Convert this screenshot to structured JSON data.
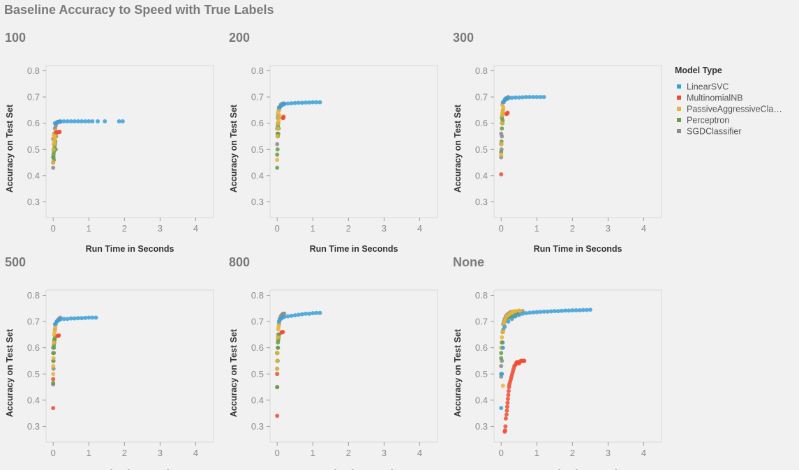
{
  "page": {
    "title": "Baseline Accuracy to Speed with True Labels"
  },
  "chart_data": {
    "type": "scatter",
    "title": "Baseline Accuracy to Speed with True Labels",
    "xlabel": "Run Time in Seconds",
    "ylabel": "Accuracy on Test Set",
    "xlim": [
      -0.2,
      4.5
    ],
    "ylim": [
      0.24,
      0.82
    ],
    "xticks": [
      "0",
      "1",
      "2",
      "3",
      "4"
    ],
    "yticks": [
      "0.3",
      "0.4",
      "0.5",
      "0.6",
      "0.7",
      "0.8"
    ],
    "grid": false,
    "legend": {
      "title": "Model Type",
      "position": "right",
      "entries": [
        {
          "name": "LinearSVC",
          "label": "LinearSVC",
          "color": "#3b9fd9"
        },
        {
          "name": "MultinomialNB",
          "label": "MultinomialNB",
          "color": "#ee4d33"
        },
        {
          "name": "PassiveAggressiveClassifier",
          "label": "PassiveAggressiveCla…",
          "color": "#e8b33c"
        },
        {
          "name": "Perceptron",
          "label": "Perceptron",
          "color": "#6a9b48"
        },
        {
          "name": "SGDClassifier",
          "label": "SGDClassifier",
          "color": "#8c8c8c"
        }
      ]
    },
    "panels": [
      {
        "title": "100",
        "series": [
          {
            "name": "SGDClassifier",
            "x": [
              0.0,
              0.01,
              0.02,
              0.03,
              0.05,
              0.07,
              0.1,
              0.13,
              0.16,
              0.2,
              0.0,
              0.01,
              0.0
            ],
            "y": [
              0.43,
              0.47,
              0.52,
              0.56,
              0.58,
              0.59,
              0.6,
              0.605,
              0.605,
              0.605,
              0.45,
              0.5,
              0.54
            ]
          },
          {
            "name": "Perceptron",
            "x": [
              0.0,
              0.01,
              0.02,
              0.03,
              0.04,
              0.05,
              0.06,
              0.07,
              0.08,
              0.02,
              0.04,
              0.06
            ],
            "y": [
              0.47,
              0.48,
              0.49,
              0.5,
              0.51,
              0.52,
              0.53,
              0.5,
              0.55,
              0.46,
              0.54,
              0.56
            ]
          },
          {
            "name": "PassiveAggressiveClassifier",
            "x": [
              0.0,
              0.01,
              0.02,
              0.03,
              0.04,
              0.05,
              0.06,
              0.07,
              0.02,
              0.04
            ],
            "y": [
              0.45,
              0.5,
              0.52,
              0.53,
              0.54,
              0.55,
              0.56,
              0.57,
              0.555,
              0.545
            ]
          },
          {
            "name": "MultinomialNB",
            "x": [
              0.08,
              0.1,
              0.12,
              0.14,
              0.16,
              0.18
            ],
            "y": [
              0.565,
              0.565,
              0.566,
              0.566,
              0.567,
              0.567
            ]
          },
          {
            "name": "LinearSVC",
            "x": [
              0.05,
              0.1,
              0.15,
              0.2,
              0.3,
              0.4,
              0.5,
              0.6,
              0.7,
              0.8,
              0.9,
              1.0,
              1.1,
              1.25,
              1.45,
              1.85,
              1.95
            ],
            "y": [
              0.6,
              0.603,
              0.605,
              0.607,
              0.607,
              0.607,
              0.607,
              0.607,
              0.607,
              0.607,
              0.607,
              0.607,
              0.607,
              0.607,
              0.607,
              0.607,
              0.607
            ]
          }
        ]
      },
      {
        "title": "200",
        "series": [
          {
            "name": "SGDClassifier",
            "x": [
              0.0,
              0.01,
              0.02,
              0.03,
              0.05,
              0.07,
              0.1,
              0.13,
              0.16,
              0.2,
              0.0,
              0.02
            ],
            "y": [
              0.52,
              0.56,
              0.6,
              0.63,
              0.65,
              0.66,
              0.67,
              0.673,
              0.675,
              0.675,
              0.58,
              0.62
            ]
          },
          {
            "name": "Perceptron",
            "x": [
              0.0,
              0.01,
              0.02,
              0.03,
              0.04,
              0.02,
              0.03,
              0.0
            ],
            "y": [
              0.43,
              0.5,
              0.55,
              0.56,
              0.58,
              0.59,
              0.6,
              0.48
            ]
          },
          {
            "name": "PassiveAggressiveClassifier",
            "x": [
              0.0,
              0.01,
              0.02,
              0.03,
              0.04,
              0.05,
              0.06,
              0.02,
              0.04
            ],
            "y": [
              0.46,
              0.55,
              0.58,
              0.6,
              0.61,
              0.62,
              0.63,
              0.64,
              0.65
            ]
          },
          {
            "name": "MultinomialNB",
            "x": [
              0.16,
              0.17,
              0.18
            ],
            "y": [
              0.62,
              0.62,
              0.625
            ]
          },
          {
            "name": "LinearSVC",
            "x": [
              0.05,
              0.1,
              0.15,
              0.2,
              0.3,
              0.4,
              0.5,
              0.6,
              0.7,
              0.8,
              0.9,
              1.0,
              1.1,
              1.2
            ],
            "y": [
              0.66,
              0.665,
              0.67,
              0.673,
              0.675,
              0.676,
              0.677,
              0.678,
              0.678,
              0.679,
              0.679,
              0.68,
              0.68,
              0.68
            ]
          }
        ]
      },
      {
        "title": "300",
        "series": [
          {
            "name": "SGDClassifier",
            "x": [
              0.0,
              0.01,
              0.02,
              0.03,
              0.05,
              0.07,
              0.1,
              0.13,
              0.16,
              0.2,
              0.0,
              0.0
            ],
            "y": [
              0.47,
              0.5,
              0.55,
              0.6,
              0.65,
              0.68,
              0.69,
              0.695,
              0.695,
              0.7,
              0.52,
              0.56
            ]
          },
          {
            "name": "Perceptron",
            "x": [
              0.0,
              0.01,
              0.02,
              0.03,
              0.04,
              0.02,
              0.03,
              0.04
            ],
            "y": [
              0.49,
              0.53,
              0.58,
              0.6,
              0.61,
              0.62,
              0.63,
              0.64
            ]
          },
          {
            "name": "PassiveAggressiveClassifier",
            "x": [
              0.0,
              0.01,
              0.02,
              0.03,
              0.04,
              0.05,
              0.06,
              0.03
            ],
            "y": [
              0.48,
              0.52,
              0.6,
              0.63,
              0.64,
              0.65,
              0.66,
              0.67
            ]
          },
          {
            "name": "MultinomialNB",
            "x": [
              0.0,
              0.15,
              0.16,
              0.17,
              0.18
            ],
            "y": [
              0.405,
              0.635,
              0.637,
              0.637,
              0.64
            ]
          },
          {
            "name": "LinearSVC",
            "x": [
              0.05,
              0.1,
              0.15,
              0.2,
              0.3,
              0.4,
              0.5,
              0.6,
              0.7,
              0.8,
              0.9,
              1.0,
              1.1,
              1.2
            ],
            "y": [
              0.68,
              0.688,
              0.692,
              0.695,
              0.697,
              0.698,
              0.698,
              0.699,
              0.7,
              0.7,
              0.7,
              0.7,
              0.7,
              0.7
            ]
          }
        ]
      },
      {
        "title": "500",
        "series": [
          {
            "name": "SGDClassifier",
            "x": [
              0.0,
              0.01,
              0.02,
              0.03,
              0.05,
              0.07,
              0.1,
              0.13,
              0.16,
              0.2,
              0.0,
              0.0
            ],
            "y": [
              0.46,
              0.52,
              0.58,
              0.63,
              0.67,
              0.69,
              0.7,
              0.705,
              0.71,
              0.715,
              0.55,
              0.6
            ]
          },
          {
            "name": "Perceptron",
            "x": [
              0.0,
              0.01,
              0.02,
              0.03,
              0.04,
              0.05,
              0.0,
              0.02
            ],
            "y": [
              0.465,
              0.55,
              0.6,
              0.62,
              0.63,
              0.64,
              0.58,
              0.61
            ]
          },
          {
            "name": "PassiveAggressiveClassifier",
            "x": [
              0.0,
              0.01,
              0.02,
              0.03,
              0.04,
              0.05,
              0.06,
              0.0
            ],
            "y": [
              0.5,
              0.56,
              0.62,
              0.65,
              0.66,
              0.67,
              0.68,
              0.53
            ]
          },
          {
            "name": "MultinomialNB",
            "x": [
              0.0,
              0.0,
              0.12,
              0.14,
              0.16
            ],
            "y": [
              0.37,
              0.48,
              0.645,
              0.645,
              0.647
            ]
          },
          {
            "name": "LinearSVC",
            "x": [
              0.05,
              0.1,
              0.15,
              0.2,
              0.3,
              0.4,
              0.5,
              0.6,
              0.7,
              0.8,
              0.9,
              1.0,
              1.1,
              1.2
            ],
            "y": [
              0.69,
              0.7,
              0.705,
              0.708,
              0.71,
              0.71,
              0.712,
              0.712,
              0.713,
              0.713,
              0.714,
              0.715,
              0.715,
              0.715
            ]
          }
        ]
      },
      {
        "title": "800",
        "series": [
          {
            "name": "SGDClassifier",
            "x": [
              0.0,
              0.01,
              0.02,
              0.03,
              0.05,
              0.07,
              0.1,
              0.13,
              0.16,
              0.2,
              0.0,
              0.0
            ],
            "y": [
              0.45,
              0.55,
              0.6,
              0.65,
              0.69,
              0.71,
              0.72,
              0.725,
              0.73,
              0.73,
              0.52,
              0.58
            ]
          },
          {
            "name": "Perceptron",
            "x": [
              0.0,
              0.01,
              0.02,
              0.03,
              0.04,
              0.0,
              0.02,
              0.05
            ],
            "y": [
              0.45,
              0.55,
              0.6,
              0.63,
              0.64,
              0.58,
              0.62,
              0.65
            ]
          },
          {
            "name": "PassiveAggressiveClassifier",
            "x": [
              0.0,
              0.01,
              0.02,
              0.03,
              0.04,
              0.05,
              0.06,
              0.0
            ],
            "y": [
              0.52,
              0.58,
              0.64,
              0.67,
              0.68,
              0.69,
              0.7,
              0.55
            ]
          },
          {
            "name": "MultinomialNB",
            "x": [
              0.0,
              0.0,
              0.12,
              0.14,
              0.16
            ],
            "y": [
              0.34,
              0.5,
              0.658,
              0.66,
              0.66
            ]
          },
          {
            "name": "LinearSVC",
            "x": [
              0.05,
              0.1,
              0.15,
              0.2,
              0.3,
              0.4,
              0.5,
              0.6,
              0.7,
              0.8,
              0.9,
              1.0,
              1.1,
              1.2
            ],
            "y": [
              0.7,
              0.71,
              0.715,
              0.718,
              0.72,
              0.722,
              0.724,
              0.726,
              0.728,
              0.73,
              0.73,
              0.732,
              0.733,
              0.733
            ]
          }
        ]
      },
      {
        "title": "None",
        "series": [
          {
            "name": "SGDClassifier",
            "x": [
              0.0,
              0.02,
              0.04,
              0.06,
              0.08,
              0.1,
              0.13,
              0.16,
              0.2,
              0.25,
              0.3,
              0.35,
              0.4,
              0.5,
              0.6,
              0.0,
              0.0
            ],
            "y": [
              0.49,
              0.55,
              0.62,
              0.67,
              0.7,
              0.71,
              0.72,
              0.725,
              0.73,
              0.735,
              0.737,
              0.738,
              0.738,
              0.74,
              0.74,
              0.5,
              0.53
            ]
          },
          {
            "name": "Perceptron",
            "x": [
              0.0,
              0.02,
              0.04,
              0.06,
              0.1,
              0.15,
              0.2,
              0.25,
              0.3,
              0.35,
              0.4,
              0.45,
              0.5,
              0.0,
              0.02
            ],
            "y": [
              0.58,
              0.62,
              0.66,
              0.69,
              0.7,
              0.71,
              0.715,
              0.72,
              0.72,
              0.72,
              0.725,
              0.73,
              0.73,
              0.56,
              0.6
            ]
          },
          {
            "name": "PassiveAggressiveClassifier",
            "x": [
              0.0,
              0.02,
              0.05,
              0.08,
              0.1,
              0.12,
              0.15,
              0.2,
              0.25,
              0.3,
              0.35,
              0.4,
              0.5,
              0.55,
              0.05
            ],
            "y": [
              0.6,
              0.64,
              0.66,
              0.69,
              0.7,
              0.71,
              0.72,
              0.725,
              0.73,
              0.735,
              0.738,
              0.74,
              0.742,
              0.74,
              0.455
            ]
          },
          {
            "name": "MultinomialNB",
            "x": [
              0.1,
              0.11,
              0.12,
              0.13,
              0.15,
              0.16,
              0.17,
              0.18,
              0.19,
              0.2,
              0.21,
              0.22,
              0.23,
              0.25,
              0.27,
              0.29,
              0.31,
              0.33,
              0.35,
              0.37,
              0.4,
              0.42,
              0.44,
              0.46,
              0.48,
              0.5,
              0.52,
              0.55,
              0.58,
              0.6,
              0.63,
              0.65
            ],
            "y": [
              0.28,
              0.285,
              0.3,
              0.33,
              0.345,
              0.36,
              0.375,
              0.39,
              0.405,
              0.42,
              0.435,
              0.45,
              0.46,
              0.47,
              0.48,
              0.49,
              0.5,
              0.51,
              0.52,
              0.53,
              0.535,
              0.54,
              0.545,
              0.545,
              0.545,
              0.54,
              0.545,
              0.55,
              0.55,
              0.55,
              0.55,
              0.55
            ]
          },
          {
            "name": "LinearSVC",
            "x": [
              0.0,
              0.02,
              0.05,
              0.1,
              0.2,
              0.3,
              0.4,
              0.5,
              0.6,
              0.7,
              0.8,
              0.9,
              1.0,
              1.1,
              1.2,
              1.3,
              1.4,
              1.5,
              1.6,
              1.7,
              1.8,
              1.9,
              2.0,
              2.1,
              2.2,
              2.3,
              2.4,
              2.5
            ],
            "y": [
              0.37,
              0.5,
              0.6,
              0.68,
              0.7,
              0.71,
              0.72,
              0.725,
              0.73,
              0.732,
              0.734,
              0.735,
              0.736,
              0.737,
              0.738,
              0.738,
              0.739,
              0.74,
              0.74,
              0.741,
              0.742,
              0.742,
              0.743,
              0.743,
              0.743,
              0.744,
              0.744,
              0.745
            ]
          }
        ]
      }
    ]
  }
}
